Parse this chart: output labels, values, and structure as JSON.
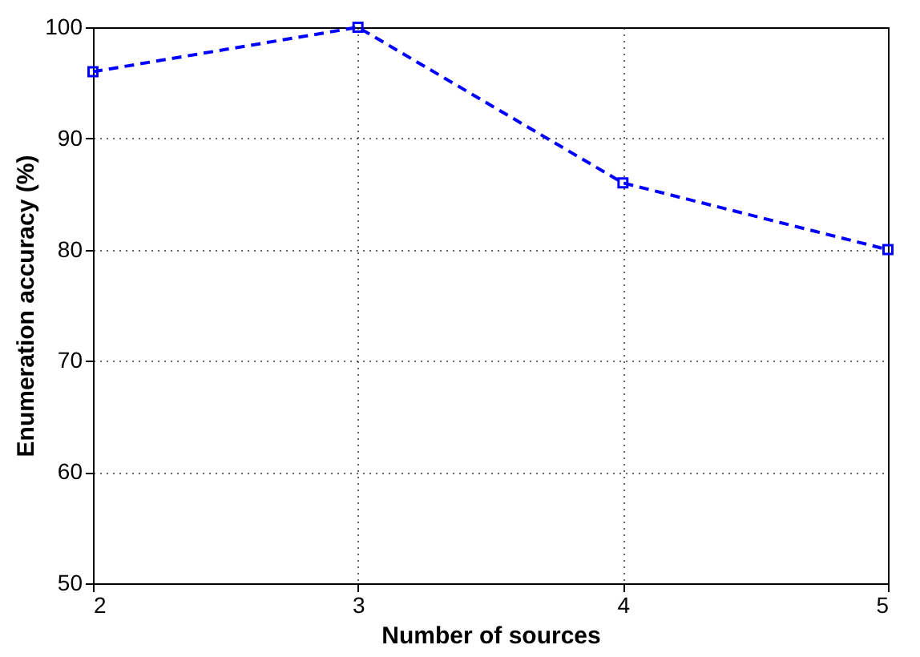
{
  "chart_data": {
    "type": "line",
    "xlabel": "Number of sources",
    "ylabel": "Enumeration accuracy (%)",
    "x": [
      2,
      3,
      4,
      5
    ],
    "series": [
      {
        "color": "#0000ff",
        "values": [
          96,
          100,
          86,
          80
        ]
      }
    ],
    "xlim": [
      2,
      5
    ],
    "ylim": [
      50,
      100
    ],
    "xticks": [
      2,
      3,
      4,
      5
    ],
    "yticks": [
      50,
      60,
      70,
      80,
      90,
      100
    ],
    "grid": true,
    "marker": "square",
    "line_style": "dashed"
  }
}
